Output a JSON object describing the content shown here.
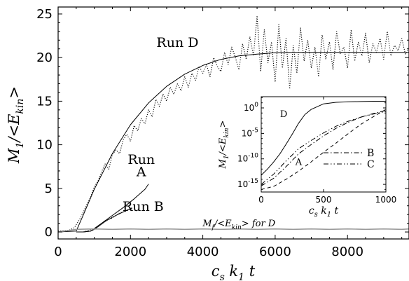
{
  "chart_data": [
    {
      "type": "line",
      "panel": "main",
      "xlabel": "c_s k_1 t",
      "ylabel": "M_1/<E_kin>",
      "xlim": [
        0,
        9700
      ],
      "ylim": [
        -0.8,
        25.8
      ],
      "x_ticks": [
        0,
        2000,
        4000,
        6000,
        8000
      ],
      "y_ticks": [
        0,
        5,
        10,
        15,
        20,
        25
      ],
      "grid": false,
      "annotations": [
        {
          "text": "Run D",
          "x": 3300,
          "y": 21.2
        },
        {
          "text": "Run",
          "x": 2300,
          "y": 7.8
        },
        {
          "text": "A",
          "x": 2300,
          "y": 6.4
        },
        {
          "text": "Run B",
          "x": 2350,
          "y": 2.4
        },
        {
          "text": "M_f/<E_kin> for D",
          "x": 5000,
          "y": 0.65
        }
      ],
      "series": [
        {
          "style": "dotted",
          "x": [
            0,
            300,
            450,
            600,
            700,
            800,
            900,
            1000,
            1100,
            1200,
            1300,
            1400,
            1500,
            1600,
            1700,
            1800,
            1900,
            2000,
            2100,
            2200,
            2300,
            2400,
            2500,
            2600,
            2700,
            2800,
            2900,
            3000,
            3100,
            3200,
            3300,
            3400,
            3500,
            3600,
            3700,
            3800,
            3900,
            4000,
            4100,
            4200,
            4300,
            4400,
            4500,
            4600,
            4700,
            4800,
            4900,
            5000,
            5100,
            5200,
            5300,
            5400,
            5500,
            5600,
            5700,
            5800,
            5900,
            6000,
            6100,
            6200,
            6300,
            6400,
            6500,
            6600,
            6700,
            6800,
            6900,
            7000,
            7100,
            7200,
            7300,
            7400,
            7500,
            7600,
            7700,
            7800,
            7900,
            8000,
            8100,
            8200,
            8300,
            8400,
            8500,
            8600,
            8700,
            8800,
            8900,
            9000,
            9100,
            9200,
            9300,
            9400,
            9500,
            9600,
            9700
          ],
          "y": [
            0.1,
            0.2,
            0.5,
            1.5,
            2.3,
            3.2,
            4.0,
            5.2,
            5.8,
            6.9,
            7.8,
            7.2,
            8.9,
            9.4,
            9.0,
            10.6,
            11.2,
            10.4,
            12.2,
            11.6,
            13.0,
            12.4,
            14.0,
            13.2,
            15.2,
            14.4,
            15.8,
            15.0,
            16.6,
            15.8,
            17.0,
            16.2,
            17.8,
            16.6,
            18.2,
            17.4,
            19.0,
            18.2,
            19.2,
            17.8,
            20.0,
            19.0,
            18.4,
            20.6,
            19.2,
            21.2,
            20.0,
            18.6,
            21.6,
            19.8,
            22.4,
            20.2,
            24.8,
            18.4,
            23.2,
            19.4,
            21.8,
            17.2,
            23.8,
            18.8,
            22.2,
            16.4,
            21.4,
            18.2,
            23.4,
            19.6,
            22.0,
            18.8,
            21.2,
            17.8,
            22.6,
            19.8,
            21.8,
            18.6,
            23.0,
            20.4,
            21.2,
            18.8,
            23.2,
            19.6,
            21.8,
            20.2,
            22.8,
            19.4,
            21.6,
            20.6,
            22.2,
            19.8,
            23.0,
            20.2,
            21.4,
            20.8,
            22.2,
            20.4,
            21.0
          ]
        },
        {
          "style": "solid",
          "x": [
            0,
            500,
            700,
            1000,
            1500,
            2000,
            2500,
            3000,
            3500,
            4000,
            4500,
            5000,
            5500,
            6000,
            6500,
            7000,
            7500,
            8000,
            8500,
            9000,
            9500,
            9700
          ],
          "y": [
            0.0,
            0.1,
            2.0,
            4.9,
            9.0,
            12.3,
            14.8,
            16.7,
            18.1,
            19.1,
            19.8,
            20.2,
            20.4,
            20.55,
            20.6,
            20.6,
            20.6,
            20.6,
            20.6,
            20.6,
            20.6,
            20.6
          ]
        },
        {
          "style": "solid",
          "x": [
            500,
            700,
            900,
            1200,
            1500,
            1800,
            2100,
            2400,
            2500
          ],
          "y": [
            0.0,
            0.0,
            0.1,
            1.0,
            1.9,
            2.8,
            3.8,
            4.9,
            5.5
          ]
        },
        {
          "style": "solid",
          "x": [
            700,
            900,
            1000,
            1100,
            1300,
            1500,
            1700,
            1900,
            2050
          ],
          "y": [
            0.0,
            0.1,
            0.3,
            0.6,
            1.2,
            1.7,
            2.1,
            2.5,
            2.75
          ]
        },
        {
          "style": "dotted",
          "x": [
            700,
            1000,
            1100,
            1300,
            1500,
            1700,
            1900,
            2050
          ],
          "y": [
            0.0,
            0.4,
            0.6,
            1.3,
            1.6,
            2.2,
            2.4,
            2.8
          ]
        },
        {
          "style": "solid-gray",
          "x": [
            0,
            500,
            1000,
            1500,
            2000,
            2500,
            3000,
            3500,
            4000,
            4500,
            5000,
            5500,
            6000,
            6500,
            7000,
            7500,
            8000,
            8500,
            9000,
            9500,
            9700
          ],
          "y": [
            0.0,
            0.3,
            0.35,
            0.3,
            0.35,
            0.3,
            0.35,
            0.3,
            0.35,
            0.3,
            0.35,
            0.3,
            0.35,
            0.3,
            0.35,
            0.3,
            0.35,
            0.3,
            0.35,
            0.3,
            0.35
          ]
        }
      ]
    },
    {
      "type": "line",
      "panel": "inset",
      "xlabel": "c_s k_1 t",
      "ylabel": "M_1/<E_kin>",
      "xlim": [
        0,
        1000
      ],
      "ylim": [
        -16.5,
        2.2
      ],
      "yscale": "log",
      "x_ticks": [
        0,
        500,
        1000
      ],
      "y_tick_exponents": [
        0,
        -5,
        -10,
        -15
      ],
      "grid": false,
      "annotations": [
        {
          "text": "D",
          "x": 180,
          "y": -1.8
        },
        {
          "text": "A",
          "x": 300,
          "y": -11.2
        }
      ],
      "legend": [
        {
          "style": "dash-dot",
          "label": "B"
        },
        {
          "style": "dash-dot-dot",
          "label": "C"
        }
      ],
      "series": [
        {
          "label": "D",
          "style": "solid",
          "x": [
            0,
            50,
            100,
            150,
            200,
            250,
            300,
            350,
            400,
            500,
            600,
            700,
            800,
            900,
            1000
          ],
          "y": [
            -13.2,
            -12.0,
            -10.6,
            -9.0,
            -7.1,
            -5.1,
            -3.0,
            -1.3,
            -0.3,
            0.8,
            1.1,
            1.2,
            1.25,
            1.3,
            1.3
          ]
        },
        {
          "label": "A",
          "style": "dashed",
          "x": [
            0,
            100,
            200,
            300,
            400,
            500,
            600,
            700,
            800,
            900,
            1000
          ],
          "y": [
            -16.0,
            -15.4,
            -14.0,
            -12.4,
            -10.6,
            -8.7,
            -6.9,
            -5.0,
            -3.2,
            -1.7,
            -0.3
          ]
        },
        {
          "label": "B",
          "style": "dash-dot",
          "x": [
            0,
            100,
            200,
            300,
            400,
            500,
            600,
            700,
            800,
            900,
            1000
          ],
          "y": [
            -15.3,
            -13.8,
            -11.5,
            -9.0,
            -7.2,
            -5.5,
            -4.0,
            -2.8,
            -1.8,
            -1.1,
            -0.5
          ]
        },
        {
          "label": "C",
          "style": "dash-dot-dot",
          "x": [
            0,
            100,
            200,
            300,
            400,
            500,
            600,
            700,
            800,
            900,
            1000
          ],
          "y": [
            -15.0,
            -13.0,
            -10.4,
            -8.0,
            -6.4,
            -4.9,
            -3.6,
            -2.6,
            -1.8,
            -1.2,
            -0.7
          ]
        }
      ]
    }
  ]
}
